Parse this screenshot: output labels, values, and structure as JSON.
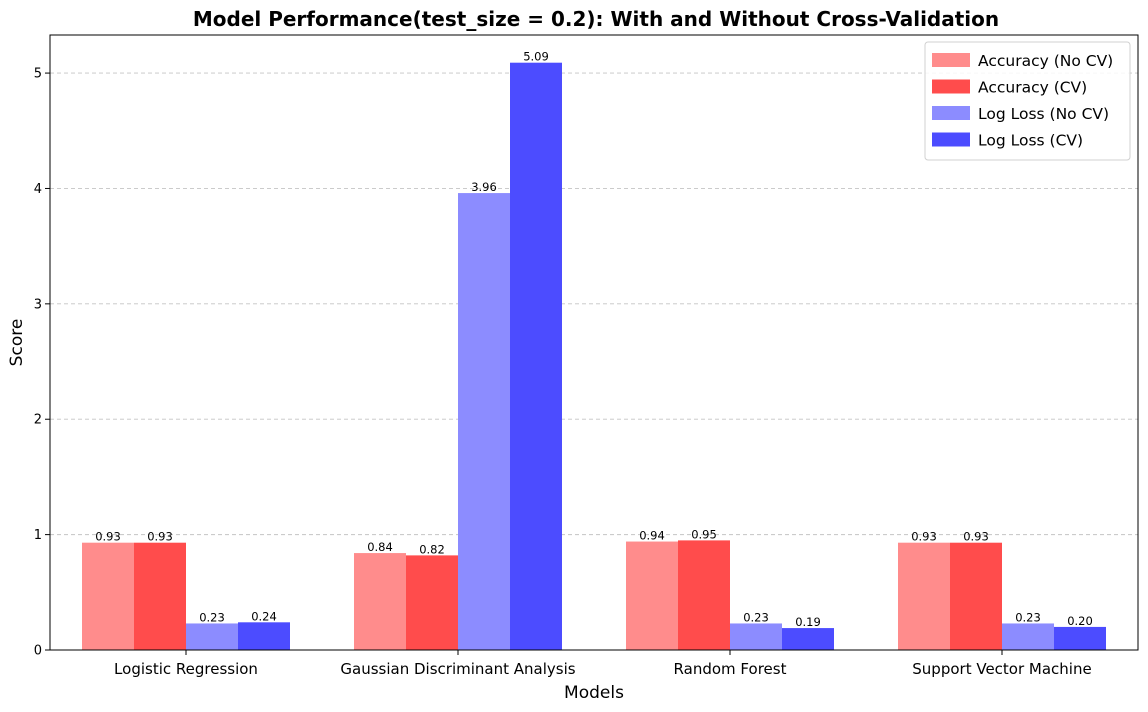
{
  "chart_data": {
    "type": "bar",
    "title": "Model Performance(test_size = 0.2): With and Without Cross-Validation",
    "xlabel": "Models",
    "ylabel": "Score",
    "ylim": [
      0,
      5.33
    ],
    "yticks": [
      0,
      1,
      2,
      3,
      4,
      5
    ],
    "grid": "y-dashed",
    "legend_position": "top-right",
    "categories": [
      "Logistic Regression",
      "Gaussian Discriminant Analysis",
      "Random Forest",
      "Support Vector Machine"
    ],
    "series": [
      {
        "name": "Accuracy (No CV)",
        "color": "#ff8c8c",
        "values": [
          0.93,
          0.84,
          0.94,
          0.93
        ],
        "labels": [
          "0.93",
          "0.84",
          "0.94",
          "0.93"
        ]
      },
      {
        "name": "Accuracy (CV)",
        "color": "#ff4c4c",
        "values": [
          0.93,
          0.82,
          0.95,
          0.93
        ],
        "labels": [
          "0.93",
          "0.82",
          "0.95",
          "0.93"
        ]
      },
      {
        "name": "Log Loss (No CV)",
        "color": "#8c8cff",
        "values": [
          0.23,
          3.96,
          0.23,
          0.23
        ],
        "labels": [
          "0.23",
          "3.96",
          "0.23",
          "0.23"
        ]
      },
      {
        "name": "Log Loss (CV)",
        "color": "#4c4cff",
        "values": [
          0.24,
          5.09,
          0.19,
          0.2
        ],
        "labels": [
          "0.24",
          "5.09",
          "0.19",
          "0.20"
        ]
      }
    ]
  }
}
